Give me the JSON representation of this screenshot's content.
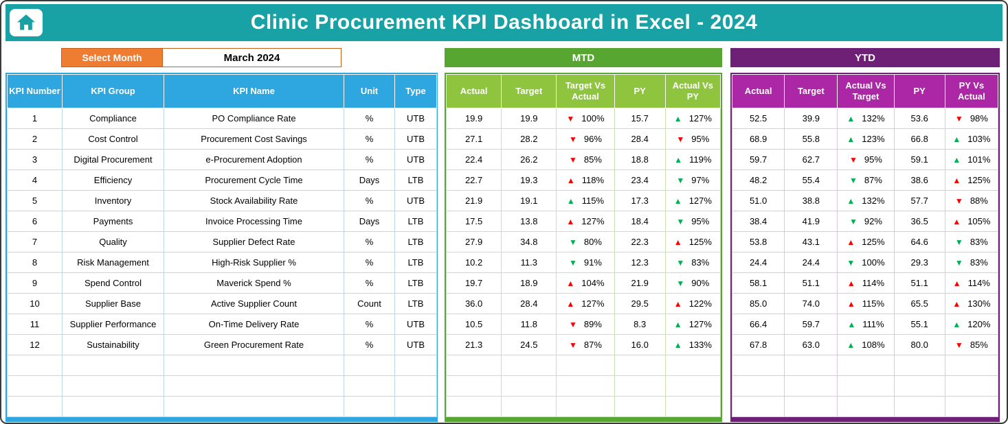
{
  "header": {
    "title": "Clinic Procurement KPI Dashboard in Excel - 2024"
  },
  "controls": {
    "select_month_label": "Select Month",
    "selected_month": "March 2024"
  },
  "kpi_table": {
    "headers": [
      "KPI Number",
      "KPI Group",
      "KPI Name",
      "Unit",
      "Type"
    ]
  },
  "mtd": {
    "banner": "MTD",
    "headers": [
      "Actual",
      "Target",
      "Target Vs Actual",
      "PY",
      "Actual Vs PY"
    ]
  },
  "ytd": {
    "banner": "YTD",
    "headers": [
      "Actual",
      "Target",
      "Actual Vs Target",
      "PY",
      "PY Vs Actual"
    ]
  },
  "empty_row_count": 3,
  "colors": {
    "teal": "#18a2a6",
    "orange": "#ee7d31",
    "blue_header": "#2ea6df",
    "green_banner": "#57a632",
    "green_header": "#8fc43f",
    "purple_banner": "#6e2077",
    "purple_header": "#ab27a5",
    "arrow_red": "#ff0000",
    "arrow_green": "#00b050"
  },
  "rows": [
    {
      "number": "1",
      "group": "Compliance",
      "name": "PO Compliance Rate",
      "unit": "%",
      "type": "UTB",
      "mtd": {
        "actual": "19.9",
        "target": "19.9",
        "target_vs_actual": {
          "dir": "down",
          "color": "red",
          "value": "100%"
        },
        "py": "15.7",
        "actual_vs_py": {
          "dir": "up",
          "color": "green",
          "value": "127%"
        }
      },
      "ytd": {
        "actual": "52.5",
        "target": "39.9",
        "actual_vs_target": {
          "dir": "up",
          "color": "green",
          "value": "132%"
        },
        "py": "53.6",
        "py_vs_actual": {
          "dir": "down",
          "color": "red",
          "value": "98%"
        }
      }
    },
    {
      "number": "2",
      "group": "Cost Control",
      "name": "Procurement Cost Savings",
      "unit": "%",
      "type": "UTB",
      "mtd": {
        "actual": "27.1",
        "target": "28.2",
        "target_vs_actual": {
          "dir": "down",
          "color": "red",
          "value": "96%"
        },
        "py": "28.4",
        "actual_vs_py": {
          "dir": "down",
          "color": "red",
          "value": "95%"
        }
      },
      "ytd": {
        "actual": "68.9",
        "target": "55.8",
        "actual_vs_target": {
          "dir": "up",
          "color": "green",
          "value": "123%"
        },
        "py": "66.8",
        "py_vs_actual": {
          "dir": "up",
          "color": "green",
          "value": "103%"
        }
      }
    },
    {
      "number": "3",
      "group": "Digital Procurement",
      "name": "e-Procurement Adoption",
      "unit": "%",
      "type": "UTB",
      "mtd": {
        "actual": "22.4",
        "target": "26.2",
        "target_vs_actual": {
          "dir": "down",
          "color": "red",
          "value": "85%"
        },
        "py": "18.8",
        "actual_vs_py": {
          "dir": "up",
          "color": "green",
          "value": "119%"
        }
      },
      "ytd": {
        "actual": "59.7",
        "target": "62.7",
        "actual_vs_target": {
          "dir": "down",
          "color": "red",
          "value": "95%"
        },
        "py": "59.1",
        "py_vs_actual": {
          "dir": "up",
          "color": "green",
          "value": "101%"
        }
      }
    },
    {
      "number": "4",
      "group": "Efficiency",
      "name": "Procurement Cycle Time",
      "unit": "Days",
      "type": "LTB",
      "mtd": {
        "actual": "22.7",
        "target": "19.3",
        "target_vs_actual": {
          "dir": "up",
          "color": "red",
          "value": "118%"
        },
        "py": "23.4",
        "actual_vs_py": {
          "dir": "down",
          "color": "green",
          "value": "97%"
        }
      },
      "ytd": {
        "actual": "48.2",
        "target": "55.4",
        "actual_vs_target": {
          "dir": "down",
          "color": "green",
          "value": "87%"
        },
        "py": "38.6",
        "py_vs_actual": {
          "dir": "up",
          "color": "red",
          "value": "125%"
        }
      }
    },
    {
      "number": "5",
      "group": "Inventory",
      "name": "Stock Availability Rate",
      "unit": "%",
      "type": "UTB",
      "mtd": {
        "actual": "21.9",
        "target": "19.1",
        "target_vs_actual": {
          "dir": "up",
          "color": "green",
          "value": "115%"
        },
        "py": "17.3",
        "actual_vs_py": {
          "dir": "up",
          "color": "green",
          "value": "127%"
        }
      },
      "ytd": {
        "actual": "51.0",
        "target": "38.8",
        "actual_vs_target": {
          "dir": "up",
          "color": "green",
          "value": "132%"
        },
        "py": "57.7",
        "py_vs_actual": {
          "dir": "down",
          "color": "red",
          "value": "88%"
        }
      }
    },
    {
      "number": "6",
      "group": "Payments",
      "name": "Invoice Processing Time",
      "unit": "Days",
      "type": "LTB",
      "mtd": {
        "actual": "17.5",
        "target": "13.8",
        "target_vs_actual": {
          "dir": "up",
          "color": "red",
          "value": "127%"
        },
        "py": "18.4",
        "actual_vs_py": {
          "dir": "down",
          "color": "green",
          "value": "95%"
        }
      },
      "ytd": {
        "actual": "38.4",
        "target": "41.9",
        "actual_vs_target": {
          "dir": "down",
          "color": "green",
          "value": "92%"
        },
        "py": "36.5",
        "py_vs_actual": {
          "dir": "up",
          "color": "red",
          "value": "105%"
        }
      }
    },
    {
      "number": "7",
      "group": "Quality",
      "name": "Supplier Defect Rate",
      "unit": "%",
      "type": "LTB",
      "mtd": {
        "actual": "27.9",
        "target": "34.8",
        "target_vs_actual": {
          "dir": "down",
          "color": "green",
          "value": "80%"
        },
        "py": "22.3",
        "actual_vs_py": {
          "dir": "up",
          "color": "red",
          "value": "125%"
        }
      },
      "ytd": {
        "actual": "53.8",
        "target": "43.1",
        "actual_vs_target": {
          "dir": "up",
          "color": "red",
          "value": "125%"
        },
        "py": "64.6",
        "py_vs_actual": {
          "dir": "down",
          "color": "green",
          "value": "83%"
        }
      }
    },
    {
      "number": "8",
      "group": "Risk Management",
      "name": "High-Risk Supplier %",
      "unit": "%",
      "type": "LTB",
      "mtd": {
        "actual": "10.2",
        "target": "11.3",
        "target_vs_actual": {
          "dir": "down",
          "color": "green",
          "value": "91%"
        },
        "py": "12.3",
        "actual_vs_py": {
          "dir": "down",
          "color": "green",
          "value": "83%"
        }
      },
      "ytd": {
        "actual": "24.4",
        "target": "24.4",
        "actual_vs_target": {
          "dir": "down",
          "color": "green",
          "value": "100%"
        },
        "py": "29.3",
        "py_vs_actual": {
          "dir": "down",
          "color": "green",
          "value": "83%"
        }
      }
    },
    {
      "number": "9",
      "group": "Spend Control",
      "name": "Maverick Spend %",
      "unit": "%",
      "type": "LTB",
      "mtd": {
        "actual": "19.7",
        "target": "18.9",
        "target_vs_actual": {
          "dir": "up",
          "color": "red",
          "value": "104%"
        },
        "py": "21.9",
        "actual_vs_py": {
          "dir": "down",
          "color": "green",
          "value": "90%"
        }
      },
      "ytd": {
        "actual": "58.1",
        "target": "51.1",
        "actual_vs_target": {
          "dir": "up",
          "color": "red",
          "value": "114%"
        },
        "py": "51.1",
        "py_vs_actual": {
          "dir": "up",
          "color": "red",
          "value": "114%"
        }
      }
    },
    {
      "number": "10",
      "group": "Supplier Base",
      "name": "Active Supplier Count",
      "unit": "Count",
      "type": "LTB",
      "mtd": {
        "actual": "36.0",
        "target": "28.4",
        "target_vs_actual": {
          "dir": "up",
          "color": "red",
          "value": "127%"
        },
        "py": "29.5",
        "actual_vs_py": {
          "dir": "up",
          "color": "red",
          "value": "122%"
        }
      },
      "ytd": {
        "actual": "85.0",
        "target": "74.0",
        "actual_vs_target": {
          "dir": "up",
          "color": "red",
          "value": "115%"
        },
        "py": "65.5",
        "py_vs_actual": {
          "dir": "up",
          "color": "red",
          "value": "130%"
        }
      }
    },
    {
      "number": "11",
      "group": "Supplier Performance",
      "name": "On-Time Delivery Rate",
      "unit": "%",
      "type": "UTB",
      "mtd": {
        "actual": "10.5",
        "target": "11.8",
        "target_vs_actual": {
          "dir": "down",
          "color": "red",
          "value": "89%"
        },
        "py": "8.3",
        "actual_vs_py": {
          "dir": "up",
          "color": "green",
          "value": "127%"
        }
      },
      "ytd": {
        "actual": "66.4",
        "target": "59.7",
        "actual_vs_target": {
          "dir": "up",
          "color": "green",
          "value": "111%"
        },
        "py": "55.1",
        "py_vs_actual": {
          "dir": "up",
          "color": "green",
          "value": "120%"
        }
      }
    },
    {
      "number": "12",
      "group": "Sustainability",
      "name": "Green Procurement Rate",
      "unit": "%",
      "type": "UTB",
      "mtd": {
        "actual": "21.3",
        "target": "24.5",
        "target_vs_actual": {
          "dir": "down",
          "color": "red",
          "value": "87%"
        },
        "py": "16.0",
        "actual_vs_py": {
          "dir": "up",
          "color": "green",
          "value": "133%"
        }
      },
      "ytd": {
        "actual": "67.8",
        "target": "63.0",
        "actual_vs_target": {
          "dir": "up",
          "color": "green",
          "value": "108%"
        },
        "py": "80.0",
        "py_vs_actual": {
          "dir": "down",
          "color": "red",
          "value": "85%"
        }
      }
    }
  ]
}
